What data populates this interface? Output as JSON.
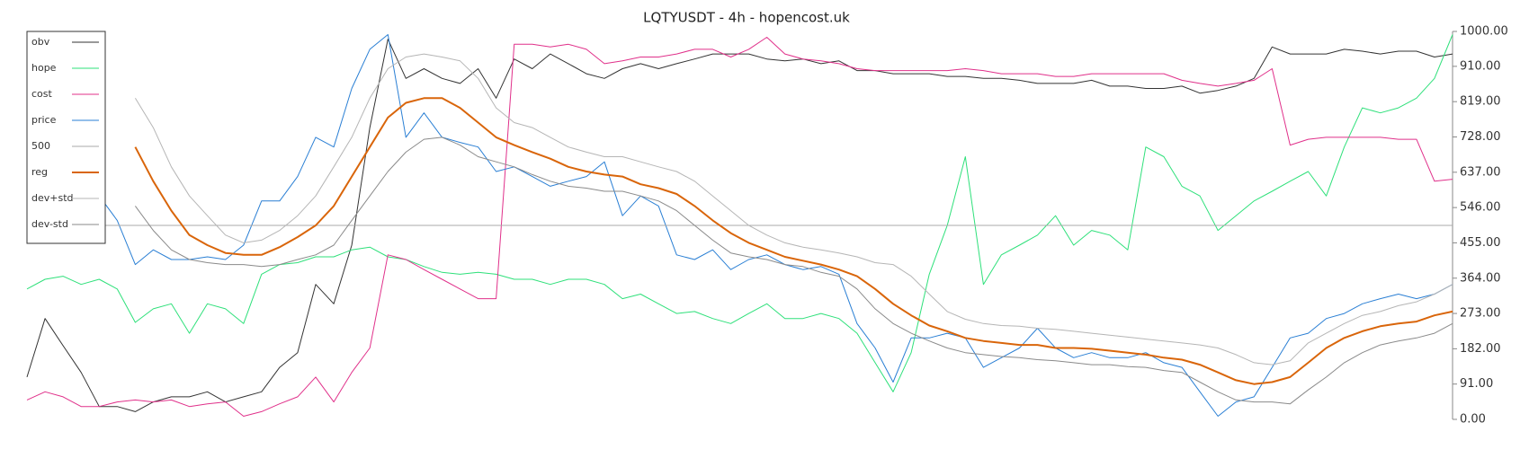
{
  "chart_data": {
    "type": "line",
    "title": "LQTYUSDT - 4h - hopencost.uk",
    "legend": "top-left",
    "grid": false,
    "y_axis_side": "right",
    "ylim": [
      0,
      1000
    ],
    "yticks": [
      {
        "value": 0,
        "label": "0.00"
      },
      {
        "value": 91,
        "label": "91.00"
      },
      {
        "value": 182,
        "label": "182.00"
      },
      {
        "value": 273,
        "label": "273.00"
      },
      {
        "value": 364,
        "label": "364.00"
      },
      {
        "value": 455,
        "label": "455.00"
      },
      {
        "value": 546,
        "label": "546.00"
      },
      {
        "value": 637,
        "label": "637.00"
      },
      {
        "value": 728,
        "label": "728.00"
      },
      {
        "value": 819,
        "label": "819.00"
      },
      {
        "value": 910,
        "label": "910.00"
      },
      {
        "value": 1000,
        "label": "1000.00"
      }
    ],
    "series": [
      {
        "name": "obv",
        "color": "#333333",
        "width": 1,
        "values": [
          109,
          260,
          190,
          121,
          33,
          33,
          20,
          45,
          58,
          58,
          71,
          45,
          58,
          71,
          134,
          172,
          348,
          298,
          449,
          752,
          980,
          879,
          904,
          879,
          866,
          904,
          828,
          929,
          904,
          942,
          917,
          891,
          879,
          904,
          917,
          904,
          917,
          929,
          942,
          942,
          942,
          929,
          924,
          929,
          917,
          924,
          899,
          899,
          891,
          891,
          891,
          884,
          884,
          879,
          879,
          874,
          866,
          866,
          866,
          874,
          859,
          859,
          853,
          853,
          859,
          841,
          848,
          859,
          879,
          960,
          942,
          942,
          942,
          954,
          949,
          942,
          949,
          949,
          934,
          942
        ]
      },
      {
        "name": "hope",
        "color": "#2ee07a",
        "width": 1,
        "values": [
          336,
          361,
          369,
          348,
          361,
          336,
          250,
          285,
          298,
          222,
          298,
          285,
          247,
          374,
          399,
          404,
          419,
          419,
          437,
          444,
          419,
          412,
          394,
          379,
          374,
          379,
          374,
          361,
          361,
          348,
          361,
          361,
          348,
          311,
          323,
          298,
          273,
          278,
          260,
          247,
          273,
          298,
          260,
          260,
          273,
          260,
          222,
          146,
          71,
          172,
          374,
          500,
          677,
          348,
          424,
          449,
          475,
          525,
          449,
          487,
          475,
          437,
          702,
          677,
          601,
          576,
          487,
          525,
          563,
          588,
          614,
          639,
          576,
          702,
          803,
          790,
          803,
          828,
          879,
          992
        ]
      },
      {
        "name": "cost",
        "color": "#e0308a",
        "width": 1,
        "values": [
          50,
          71,
          58,
          33,
          33,
          45,
          50,
          45,
          50,
          33,
          40,
          45,
          8,
          20,
          40,
          58,
          109,
          45,
          121,
          184,
          424,
          412,
          386,
          361,
          336,
          311,
          311,
          967,
          967,
          960,
          967,
          954,
          917,
          924,
          934,
          934,
          942,
          954,
          954,
          934,
          954,
          985,
          942,
          929,
          924,
          917,
          904,
          899,
          899,
          899,
          899,
          899,
          904,
          899,
          891,
          891,
          891,
          884,
          884,
          891,
          891,
          891,
          891,
          891,
          874,
          866,
          859,
          866,
          874,
          904,
          707,
          722,
          727,
          727,
          727,
          727,
          722,
          722,
          614,
          619
        ]
      },
      {
        "name": "price",
        "color": "#2a7fd4",
        "width": 1,
        "values": [
          null,
          null,
          null,
          null,
          576,
          513,
          399,
          437,
          412,
          412,
          419,
          412,
          449,
          563,
          563,
          626,
          727,
          702,
          853,
          954,
          992,
          727,
          790,
          727,
          714,
          702,
          639,
          651,
          626,
          601,
          614,
          626,
          664,
          525,
          576,
          550,
          424,
          412,
          437,
          386,
          412,
          424,
          399,
          386,
          394,
          374,
          247,
          184,
          96,
          210,
          210,
          222,
          210,
          134,
          159,
          184,
          235,
          184,
          159,
          172,
          159,
          159,
          172,
          146,
          134,
          71,
          8,
          45,
          58,
          134,
          210,
          222,
          260,
          273,
          298,
          311,
          323,
          311,
          323,
          348
        ]
      },
      {
        "name": "500",
        "color": "#aaaaaa",
        "width": 1,
        "values": [
          500,
          500,
          500,
          500,
          500,
          500,
          500,
          500,
          500,
          500,
          500,
          500,
          500,
          500,
          500,
          500,
          500,
          500,
          500,
          500,
          500,
          500,
          500,
          500,
          500,
          500,
          500,
          500,
          500,
          500,
          500,
          500,
          500,
          500,
          500,
          500,
          500,
          500,
          500,
          500,
          500,
          500,
          500,
          500,
          500,
          500,
          500,
          500,
          500,
          500,
          500,
          500,
          500,
          500,
          500,
          500,
          500,
          500,
          500,
          500,
          500,
          500,
          500,
          500,
          500,
          500,
          500,
          500,
          500,
          500,
          500,
          500,
          500,
          500,
          500,
          500,
          500,
          500,
          500,
          500
        ]
      },
      {
        "name": "reg",
        "color": "#d9650a",
        "width": 2,
        "values": [
          null,
          null,
          null,
          null,
          null,
          null,
          702,
          614,
          538,
          475,
          449,
          429,
          424,
          424,
          444,
          470,
          500,
          550,
          626,
          702,
          778,
          816,
          828,
          828,
          803,
          765,
          727,
          707,
          689,
          672,
          651,
          639,
          631,
          626,
          606,
          596,
          581,
          550,
          513,
          480,
          455,
          437,
          419,
          409,
          399,
          386,
          369,
          336,
          298,
          268,
          242,
          227,
          210,
          202,
          197,
          192,
          192,
          184,
          184,
          182,
          177,
          172,
          167,
          159,
          154,
          141,
          121,
          101,
          91,
          96,
          109,
          146,
          184,
          210,
          227,
          240,
          247,
          252,
          268,
          278
        ]
      },
      {
        "name": "dev+std",
        "color": "#b5b5b5",
        "width": 1,
        "values": [
          null,
          null,
          null,
          null,
          null,
          null,
          828,
          752,
          651,
          576,
          525,
          475,
          455,
          462,
          487,
          525,
          576,
          651,
          727,
          828,
          904,
          934,
          942,
          934,
          924,
          879,
          803,
          765,
          752,
          727,
          702,
          689,
          677,
          677,
          664,
          651,
          639,
          614,
          576,
          538,
          500,
          475,
          455,
          444,
          437,
          429,
          419,
          404,
          399,
          369,
          323,
          278,
          258,
          247,
          242,
          240,
          235,
          232,
          227,
          222,
          217,
          212,
          207,
          202,
          197,
          192,
          184,
          167,
          146,
          141,
          151,
          197,
          222,
          247,
          268,
          278,
          293,
          303,
          323,
          348
        ]
      },
      {
        "name": "dev-std",
        "color": "#8a8a8a",
        "width": 1,
        "values": [
          null,
          null,
          null,
          null,
          null,
          null,
          550,
          487,
          437,
          412,
          404,
          399,
          399,
          394,
          399,
          412,
          424,
          449,
          513,
          576,
          639,
          689,
          722,
          727,
          707,
          677,
          664,
          651,
          631,
          614,
          601,
          596,
          588,
          588,
          576,
          563,
          538,
          500,
          462,
          429,
          419,
          412,
          399,
          394,
          379,
          369,
          336,
          285,
          247,
          222,
          202,
          184,
          172,
          167,
          162,
          159,
          154,
          151,
          146,
          141,
          141,
          136,
          134,
          126,
          121,
          96,
          71,
          50,
          45,
          45,
          40,
          76,
          109,
          146,
          172,
          192,
          202,
          210,
          222,
          247
        ]
      }
    ]
  }
}
